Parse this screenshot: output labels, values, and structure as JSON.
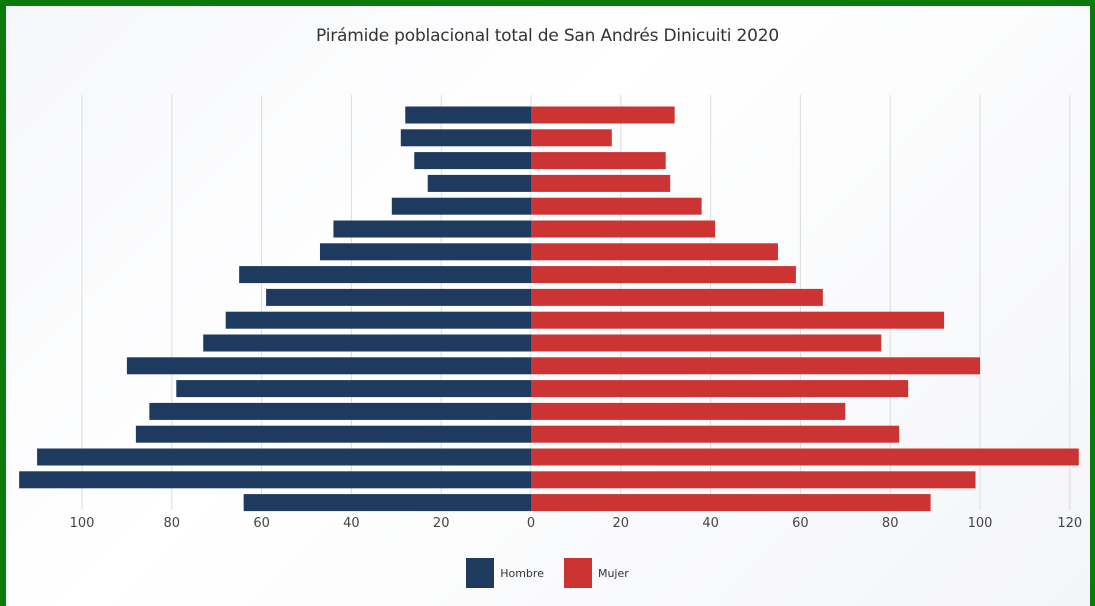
{
  "chart_data": {
    "type": "bar",
    "orientation": "horizontal",
    "title": "Pirámide poblacional total de San Andrés Dinicuiti 2020",
    "xlabel": "",
    "ylabel": "",
    "xlim": [
      -114,
      122
    ],
    "x_ticks": [
      -100,
      -80,
      -60,
      -40,
      -20,
      0,
      20,
      40,
      60,
      80,
      100,
      120
    ],
    "x_tick_labels": [
      "100",
      "80",
      "60",
      "40",
      "20",
      "0",
      "20",
      "40",
      "60",
      "80",
      "100",
      "120"
    ],
    "grid": "vertical",
    "legend_position": "bottom-center",
    "series": [
      {
        "name": "Hombre",
        "color": "#1e3a5f",
        "direction": "left",
        "values": [
          28,
          29,
          26,
          23,
          31,
          44,
          47,
          65,
          59,
          68,
          73,
          90,
          79,
          85,
          88,
          110,
          114,
          64
        ]
      },
      {
        "name": "Mujer",
        "color": "#cc3333",
        "direction": "right",
        "values": [
          32,
          18,
          30,
          31,
          38,
          41,
          55,
          59,
          65,
          92,
          78,
          100,
          84,
          70,
          82,
          122,
          99,
          89
        ]
      }
    ]
  }
}
